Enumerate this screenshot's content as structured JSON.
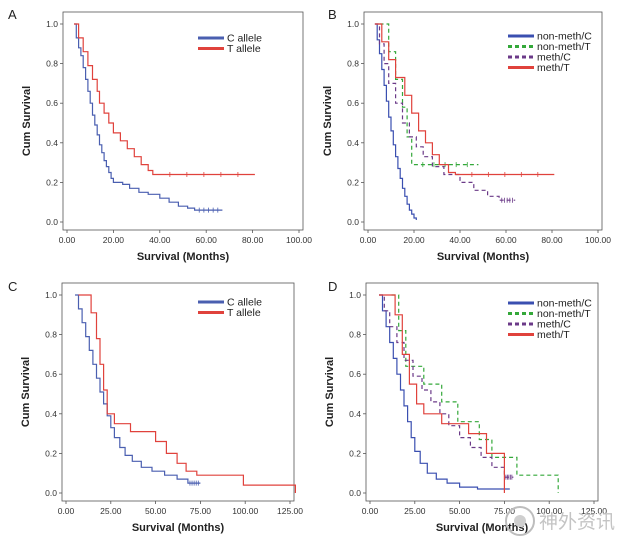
{
  "watermark": {
    "text": "神外资讯"
  },
  "chart_data": [
    {
      "type": "line",
      "panel_label": "A",
      "xlabel": "Survival (Months)",
      "ylabel": "Cum Survival",
      "xlim": [
        0,
        100
      ],
      "ylim": [
        0,
        1.0
      ],
      "xticks": [
        "0.00",
        "20.00",
        "40.00",
        "60.00",
        "80.00",
        "100.00"
      ],
      "yticks": [
        "0.0",
        "0.2",
        "0.4",
        "0.6",
        "0.8",
        "1.0"
      ],
      "legend_position": "top-right",
      "grid": false,
      "series": [
        {
          "name": "C allele",
          "color": "#4a5fb0",
          "dash": "",
          "points": [
            [
              3,
              1.0
            ],
            [
              4,
              0.93
            ],
            [
              5,
              0.88
            ],
            [
              6,
              0.84
            ],
            [
              7,
              0.78
            ],
            [
              8,
              0.72
            ],
            [
              9,
              0.66
            ],
            [
              10,
              0.6
            ],
            [
              11,
              0.54
            ],
            [
              12,
              0.49
            ],
            [
              13,
              0.44
            ],
            [
              14,
              0.39
            ],
            [
              15,
              0.35
            ],
            [
              16,
              0.31
            ],
            [
              17,
              0.28
            ],
            [
              18,
              0.25
            ],
            [
              19,
              0.22
            ],
            [
              20,
              0.2
            ],
            [
              24,
              0.19
            ],
            [
              27,
              0.17
            ],
            [
              31,
              0.15
            ],
            [
              35,
              0.14
            ],
            [
              40,
              0.12
            ],
            [
              44,
              0.1
            ],
            [
              48,
              0.08
            ],
            [
              52,
              0.07
            ],
            [
              55,
              0.06
            ],
            [
              67,
              0.06
            ]
          ]
        },
        {
          "name": "T allele",
          "color": "#e0423c",
          "dash": "",
          "points": [
            [
              3,
              1.0
            ],
            [
              5,
              0.93
            ],
            [
              7,
              0.86
            ],
            [
              9,
              0.79
            ],
            [
              11,
              0.72
            ],
            [
              13,
              0.66
            ],
            [
              14,
              0.6
            ],
            [
              16,
              0.55
            ],
            [
              18,
              0.5
            ],
            [
              20,
              0.45
            ],
            [
              23,
              0.41
            ],
            [
              26,
              0.37
            ],
            [
              29,
              0.33
            ],
            [
              32,
              0.29
            ],
            [
              35,
              0.26
            ],
            [
              37,
              0.24
            ],
            [
              81,
              0.24
            ]
          ]
        }
      ]
    },
    {
      "type": "line",
      "panel_label": "B",
      "xlabel": "Survival (Months)",
      "ylabel": "Cum Survival",
      "xlim": [
        0,
        100
      ],
      "ylim": [
        0,
        1.0
      ],
      "xticks": [
        "0.00",
        "20.00",
        "40.00",
        "60.00",
        "80.00",
        "100.00"
      ],
      "yticks": [
        "0.0",
        "0.2",
        "0.4",
        "0.6",
        "0.8",
        "1.0"
      ],
      "legend_position": "top-right",
      "grid": false,
      "series": [
        {
          "name": "non-meth/C",
          "color": "#3a4fb0",
          "dash": "",
          "points": [
            [
              3,
              1.0
            ],
            [
              4,
              0.92
            ],
            [
              5,
              0.85
            ],
            [
              6,
              0.77
            ],
            [
              7,
              0.69
            ],
            [
              8,
              0.61
            ],
            [
              9,
              0.53
            ],
            [
              10,
              0.46
            ],
            [
              11,
              0.39
            ],
            [
              12,
              0.33
            ],
            [
              13,
              0.27
            ],
            [
              14,
              0.22
            ],
            [
              15,
              0.17
            ],
            [
              16,
              0.13
            ],
            [
              17,
              0.09
            ],
            [
              18,
              0.06
            ],
            [
              19,
              0.04
            ],
            [
              20,
              0.02
            ],
            [
              21,
              0.01
            ]
          ]
        },
        {
          "name": "non-meth/T",
          "color": "#34a83a",
          "dash": "4,3",
          "points": [
            [
              5,
              1.0
            ],
            [
              9,
              0.86
            ],
            [
              12,
              0.72
            ],
            [
              15,
              0.58
            ],
            [
              17,
              0.43
            ],
            [
              19,
              0.29
            ],
            [
              48,
              0.29
            ]
          ]
        },
        {
          "name": "meth/C",
          "color": "#6b3a88",
          "dash": "4,3",
          "points": [
            [
              3,
              1.0
            ],
            [
              5,
              0.9
            ],
            [
              7,
              0.8
            ],
            [
              9,
              0.7
            ],
            [
              12,
              0.6
            ],
            [
              15,
              0.5
            ],
            [
              18,
              0.43
            ],
            [
              21,
              0.38
            ],
            [
              24,
              0.33
            ],
            [
              28,
              0.28
            ],
            [
              33,
              0.24
            ],
            [
              40,
              0.2
            ],
            [
              46,
              0.16
            ],
            [
              52,
              0.13
            ],
            [
              57,
              0.11
            ],
            [
              64,
              0.11
            ]
          ]
        },
        {
          "name": "meth/T",
          "color": "#e0423c",
          "dash": "",
          "points": [
            [
              3,
              1.0
            ],
            [
              6,
              0.91
            ],
            [
              9,
              0.82
            ],
            [
              12,
              0.73
            ],
            [
              16,
              0.64
            ],
            [
              19,
              0.55
            ],
            [
              22,
              0.46
            ],
            [
              25,
              0.4
            ],
            [
              28,
              0.34
            ],
            [
              31,
              0.29
            ],
            [
              35,
              0.25
            ],
            [
              38,
              0.24
            ],
            [
              81,
              0.24
            ]
          ]
        }
      ]
    },
    {
      "type": "line",
      "panel_label": "C",
      "xlabel": "Survival (Months)",
      "ylabel": "Cum Survival",
      "xlim": [
        0,
        125
      ],
      "ylim": [
        0,
        1.0
      ],
      "xticks": [
        "0.00",
        "25.00",
        "50.00",
        "75.00",
        "100.00",
        "125.00"
      ],
      "yticks": [
        "0.0",
        "0.2",
        "0.4",
        "0.6",
        "0.8",
        "1.0"
      ],
      "legend_position": "top-right",
      "grid": false,
      "series": [
        {
          "name": "C allele",
          "color": "#4a5fb0",
          "dash": "",
          "points": [
            [
              5,
              1.0
            ],
            [
              7,
              0.93
            ],
            [
              9,
              0.86
            ],
            [
              11,
              0.79
            ],
            [
              13,
              0.72
            ],
            [
              15,
              0.65
            ],
            [
              17,
              0.58
            ],
            [
              19,
              0.51
            ],
            [
              21,
              0.45
            ],
            [
              23,
              0.39
            ],
            [
              25,
              0.33
            ],
            [
              27,
              0.28
            ],
            [
              30,
              0.23
            ],
            [
              33,
              0.19
            ],
            [
              37,
              0.16
            ],
            [
              42,
              0.13
            ],
            [
              48,
              0.11
            ],
            [
              55,
              0.09
            ],
            [
              62,
              0.07
            ],
            [
              68,
              0.05
            ],
            [
              75,
              0.05
            ]
          ]
        },
        {
          "name": "T allele",
          "color": "#e0423c",
          "dash": "",
          "points": [
            [
              7,
              1.0
            ],
            [
              14,
              0.91
            ],
            [
              17,
              0.78
            ],
            [
              19,
              0.65
            ],
            [
              21,
              0.52
            ],
            [
              23,
              0.4
            ],
            [
              27,
              0.35
            ],
            [
              36,
              0.31
            ],
            [
              50,
              0.26
            ],
            [
              56,
              0.2
            ],
            [
              62,
              0.15
            ],
            [
              67,
              0.11
            ],
            [
              73,
              0.09
            ],
            [
              99,
              0.04
            ],
            [
              128,
              0.0
            ]
          ]
        }
      ]
    },
    {
      "type": "line",
      "panel_label": "D",
      "xlabel": "Survival (Months)",
      "ylabel": "Cum Survival",
      "xlim": [
        0,
        125
      ],
      "ylim": [
        0,
        1.0
      ],
      "xticks": [
        "0.00",
        "25.00",
        "50.00",
        "75.00",
        "100.00",
        "125.00"
      ],
      "yticks": [
        "0.0",
        "0.2",
        "0.4",
        "0.6",
        "0.8",
        "1.0"
      ],
      "legend_position": "top-right",
      "grid": false,
      "series": [
        {
          "name": "non-meth/C",
          "color": "#3a4fb0",
          "dash": "",
          "points": [
            [
              5,
              1.0
            ],
            [
              7,
              0.92
            ],
            [
              9,
              0.84
            ],
            [
              11,
              0.76
            ],
            [
              13,
              0.68
            ],
            [
              15,
              0.6
            ],
            [
              17,
              0.52
            ],
            [
              19,
              0.44
            ],
            [
              21,
              0.36
            ],
            [
              23,
              0.28
            ],
            [
              25,
              0.21
            ],
            [
              28,
              0.15
            ],
            [
              32,
              0.1
            ],
            [
              37,
              0.07
            ],
            [
              43,
              0.05
            ],
            [
              50,
              0.03
            ],
            [
              60,
              0.02
            ],
            [
              78,
              0.02
            ]
          ]
        },
        {
          "name": "non-meth/T",
          "color": "#34a83a",
          "dash": "4,3",
          "points": [
            [
              12,
              1.0
            ],
            [
              16,
              0.82
            ],
            [
              20,
              0.64
            ],
            [
              30,
              0.55
            ],
            [
              40,
              0.46
            ],
            [
              49,
              0.36
            ],
            [
              61,
              0.27
            ],
            [
              68,
              0.18
            ],
            [
              82,
              0.09
            ],
            [
              105,
              0.0
            ]
          ]
        },
        {
          "name": "meth/C",
          "color": "#6b3a88",
          "dash": "4,3",
          "points": [
            [
              5,
              1.0
            ],
            [
              8,
              0.92
            ],
            [
              11,
              0.84
            ],
            [
              15,
              0.76
            ],
            [
              19,
              0.67
            ],
            [
              24,
              0.59
            ],
            [
              29,
              0.52
            ],
            [
              34,
              0.46
            ],
            [
              39,
              0.4
            ],
            [
              44,
              0.34
            ],
            [
              50,
              0.28
            ],
            [
              56,
              0.23
            ],
            [
              62,
              0.18
            ],
            [
              68,
              0.13
            ],
            [
              75,
              0.08
            ],
            [
              80,
              0.08
            ]
          ]
        },
        {
          "name": "meth/T",
          "color": "#e0423c",
          "dash": "",
          "points": [
            [
              5,
              1.0
            ],
            [
              14,
              0.9
            ],
            [
              18,
              0.7
            ],
            [
              22,
              0.55
            ],
            [
              26,
              0.45
            ],
            [
              30,
              0.4
            ],
            [
              40,
              0.35
            ],
            [
              55,
              0.3
            ],
            [
              65,
              0.2
            ],
            [
              75,
              0.1
            ],
            [
              75,
              0.0
            ]
          ]
        }
      ]
    }
  ]
}
